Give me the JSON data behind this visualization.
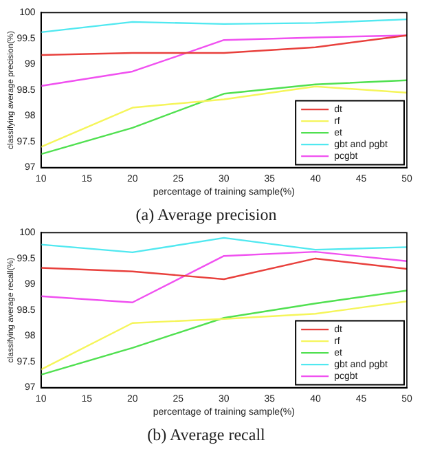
{
  "chart_data": [
    {
      "type": "line",
      "title": "(a) Average precision",
      "xlabel": "percentage of training sample(%)",
      "ylabel": "classifying average precision(%)",
      "x": [
        10,
        20,
        30,
        40,
        50
      ],
      "xlim": [
        10,
        50
      ],
      "xticks": [
        10,
        15,
        20,
        25,
        30,
        35,
        40,
        45,
        50
      ],
      "ylim": [
        97,
        100
      ],
      "yticks": [
        97,
        97.5,
        98,
        98.5,
        99,
        99.5,
        100
      ],
      "grid": false,
      "legend": "bottom right",
      "marker": "none",
      "line_style": "solid",
      "series": [
        {
          "name": "dt",
          "color": "#e8403c",
          "values": [
            99.18,
            99.22,
            99.22,
            99.33,
            99.56
          ]
        },
        {
          "name": "rf",
          "color": "#f5f55a",
          "values": [
            97.4,
            98.16,
            98.32,
            98.57,
            98.45
          ]
        },
        {
          "name": "et",
          "color": "#50e050",
          "values": [
            97.26,
            97.77,
            98.43,
            98.61,
            98.69
          ]
        },
        {
          "name": "gbt and pgbt",
          "color": "#50e8f0",
          "values": [
            99.62,
            99.82,
            99.78,
            99.8,
            99.87
          ]
        },
        {
          "name": "pcgbt",
          "color": "#f050f0",
          "values": [
            98.58,
            98.86,
            99.47,
            99.52,
            99.56
          ]
        }
      ]
    },
    {
      "type": "line",
      "title": "(b) Average recall",
      "xlabel": "percentage of training sample(%)",
      "ylabel": "classifying average recall(%)",
      "x": [
        10,
        20,
        30,
        40,
        50
      ],
      "xlim": [
        10,
        50
      ],
      "xticks": [
        10,
        15,
        20,
        25,
        30,
        35,
        40,
        45,
        50
      ],
      "ylim": [
        97,
        100
      ],
      "yticks": [
        97,
        97.5,
        98,
        98.5,
        99,
        99.5,
        100
      ],
      "grid": false,
      "legend": "bottom right",
      "marker": "none",
      "line_style": "solid",
      "series": [
        {
          "name": "dt",
          "color": "#e8403c",
          "values": [
            99.32,
            99.25,
            99.1,
            99.5,
            99.3
          ]
        },
        {
          "name": "rf",
          "color": "#f5f55a",
          "values": [
            97.35,
            98.25,
            98.33,
            98.43,
            98.67
          ]
        },
        {
          "name": "et",
          "color": "#50e050",
          "values": [
            97.25,
            97.77,
            98.35,
            98.63,
            98.88
          ]
        },
        {
          "name": "gbt and pgbt",
          "color": "#50e8f0",
          "values": [
            99.77,
            99.62,
            99.9,
            99.67,
            99.72
          ]
        },
        {
          "name": "pcgbt",
          "color": "#f050f0",
          "values": [
            98.77,
            98.65,
            99.55,
            99.63,
            99.45
          ]
        }
      ]
    }
  ]
}
